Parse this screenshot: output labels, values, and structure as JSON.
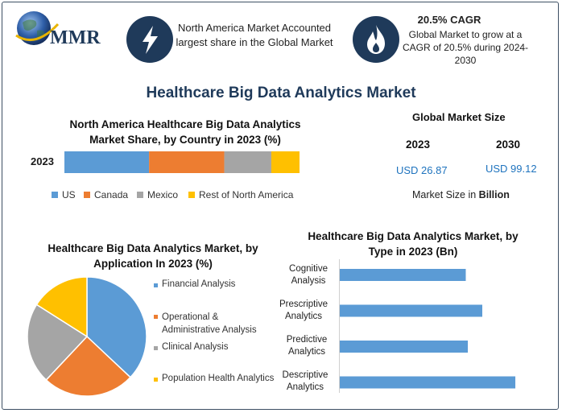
{
  "brand": {
    "logo_text": "MMR"
  },
  "header": {
    "card1_text": "North America Market Accounted largest share in the Global Market",
    "card2_title": "20.5% CAGR",
    "card2_text": "Global Market to grow at a CAGR of 20.5% during 2024-2030"
  },
  "main_title": "Healthcare Big Data Analytics Market",
  "market_size": {
    "title": "Global Market Size",
    "year_a": "2023",
    "year_b": "2030",
    "value_a": "USD 26.87",
    "value_b": "USD 99.12",
    "note_prefix": "Market Size in ",
    "note_bold": "Billion"
  },
  "colors": {
    "us": "#5b9bd5",
    "canada": "#ed7d31",
    "mexico": "#a5a5a5",
    "rest": "#ffc000",
    "bar": "#5b9bd5",
    "navy": "#1f3a5a"
  },
  "chart_data": [
    {
      "type": "bar",
      "orientation": "horizontal-stacked",
      "title": "North America Healthcare Big Data Analytics Market Share, by Country in 2023 (%)",
      "categories": [
        "2023"
      ],
      "series": [
        {
          "name": "US",
          "values": [
            36
          ]
        },
        {
          "name": "Canada",
          "values": [
            32
          ]
        },
        {
          "name": "Mexico",
          "values": [
            20
          ]
        },
        {
          "name": "Rest of North America",
          "values": [
            12
          ]
        }
      ],
      "legend": "bottom"
    },
    {
      "type": "pie",
      "title": "Healthcare Big Data Analytics Market, by Application In 2023 (%)",
      "labels": [
        "Financial Analysis",
        "Operational & Administrative Analysis",
        "Clinical Analysis",
        "Population Health Analytics"
      ],
      "values": [
        37,
        25,
        22,
        16
      ],
      "legend": "right"
    },
    {
      "type": "bar",
      "orientation": "horizontal",
      "title": "Healthcare Big Data Analytics Market, by Type in 2023 (Bn)",
      "categories": [
        "Cognitive Analysis",
        "Prescriptive Analytics",
        "Predictive Analytics",
        "Descriptive Analytics"
      ],
      "category_lines": [
        [
          "Cognitive",
          "Analysis"
        ],
        [
          "Prescriptive",
          "Analytics"
        ],
        [
          "Predictive",
          "Analytics"
        ],
        [
          "Descriptive",
          "Analytics"
        ]
      ],
      "values": [
        6.1,
        6.9,
        6.2,
        8.5
      ]
    }
  ]
}
